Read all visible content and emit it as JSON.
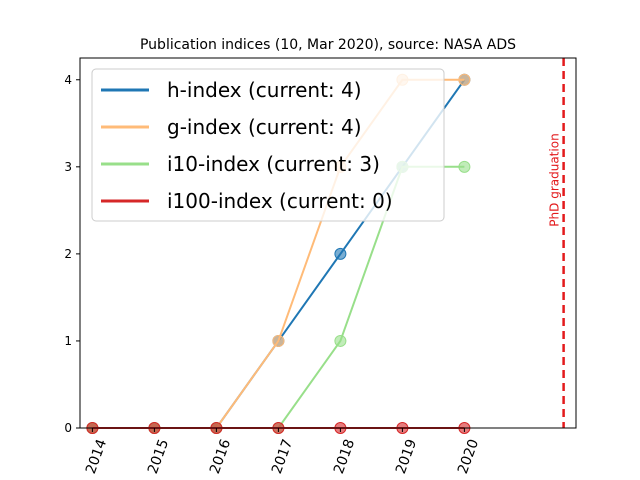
{
  "chart_data": {
    "type": "line",
    "title": "Publication indices (10, Mar 2020), source: NASA ADS",
    "xlabel": "",
    "ylabel": "",
    "x": [
      2014,
      2015,
      2016,
      2017,
      2018,
      2019,
      2020
    ],
    "x_tick_labels": [
      "2014",
      "2015",
      "2016",
      "2017",
      "2018",
      "2019",
      "2020"
    ],
    "y_ticks": [
      0,
      1,
      2,
      3,
      4
    ],
    "y_tick_labels": [
      "0",
      "1",
      "2",
      "3",
      "4"
    ],
    "xlim": [
      2013.8,
      2021.8
    ],
    "ylim": [
      0,
      4.25
    ],
    "grid": false,
    "legend_position": "top-left",
    "series": [
      {
        "name": "h-index (current: 4)",
        "color": "#1f77b4",
        "values": [
          0,
          0,
          0,
          1,
          2,
          3,
          4
        ]
      },
      {
        "name": "g-index (current: 4)",
        "color": "#ffbb78",
        "values": [
          0,
          0,
          0,
          1,
          3,
          4,
          4
        ]
      },
      {
        "name": "i10-index (current: 3)",
        "color": "#98df8a",
        "values": [
          0,
          0,
          0,
          0,
          1,
          3,
          3
        ]
      },
      {
        "name": "i100-index (current: 0)",
        "color": "#d62728",
        "values": [
          0,
          0,
          0,
          0,
          0,
          0,
          0
        ]
      }
    ],
    "annotations": [
      {
        "type": "vline",
        "x": 2021.6,
        "color": "#e31a1c",
        "style": "dashed",
        "label": "PhD graduation"
      }
    ]
  }
}
